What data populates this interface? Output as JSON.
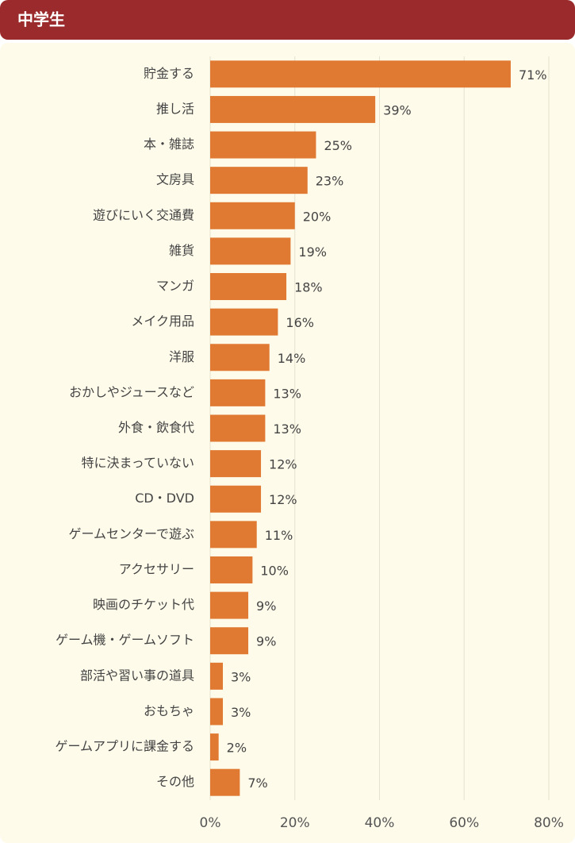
{
  "chart_data": {
    "type": "bar",
    "orientation": "horizontal",
    "title": "中学生",
    "categories": [
      "貯金する",
      "推し活",
      "本・雑誌",
      "文房具",
      "遊びにいく交通費",
      "雑貨",
      "マンガ",
      "メイク用品",
      "洋服",
      "おかしやジュースなど",
      "外食・飲食代",
      "特に決まっていない",
      "CD・DVD",
      "ゲームセンターで遊ぶ",
      "アクセサリー",
      "映画のチケット代",
      "ゲーム機・ゲームソフト",
      "部活や習い事の道具",
      "おもちゃ",
      "ゲームアプリに課金する",
      "その他"
    ],
    "values": [
      71,
      39,
      25,
      23,
      20,
      19,
      18,
      16,
      14,
      13,
      13,
      12,
      12,
      11,
      10,
      9,
      9,
      3,
      3,
      2,
      7
    ],
    "value_labels": [
      "71%",
      "39%",
      "25%",
      "23%",
      "20%",
      "19%",
      "18%",
      "16%",
      "14%",
      "13%",
      "13%",
      "12%",
      "12%",
      "11%",
      "10%",
      "9%",
      "9%",
      "3%",
      "3%",
      "2%",
      "7%"
    ],
    "color": "#e07a33",
    "xlim": [
      0,
      80
    ],
    "xticks": [
      {
        "value": 0,
        "label": "0%"
      },
      {
        "value": 20,
        "label": "20%"
      },
      {
        "value": 40,
        "label": "40%"
      },
      {
        "value": 60,
        "label": "60%"
      },
      {
        "value": 80,
        "label": "80%"
      }
    ],
    "grid": true
  }
}
